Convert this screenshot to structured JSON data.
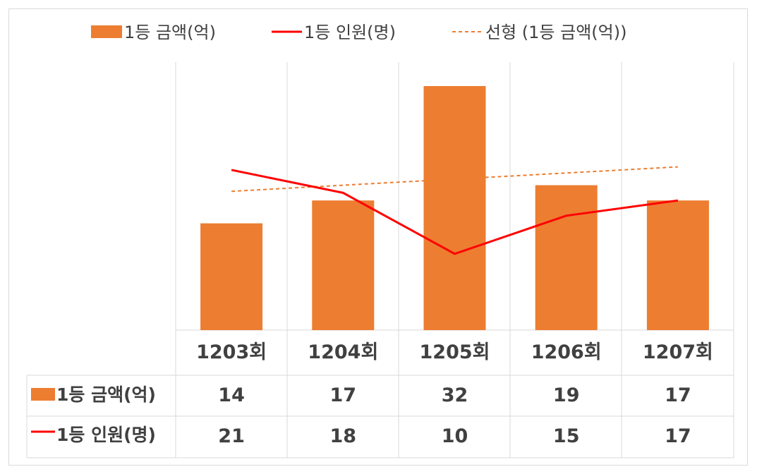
{
  "chart_data": {
    "type": "bar",
    "title": "",
    "categories": [
      "1203회",
      "1204회",
      "1205회",
      "1206회",
      "1207회"
    ],
    "series": [
      {
        "name": "1등 금액(억)",
        "kind": "bar",
        "color": "#ED7D31",
        "values": [
          14,
          17,
          32,
          19,
          17
        ]
      },
      {
        "name": "1등 인원(명)",
        "kind": "line",
        "color": "#FF0000",
        "values": [
          21,
          18,
          10,
          15,
          17
        ]
      }
    ],
    "trendline": {
      "name": "선형 (1등 금액(억))",
      "of_series": "1등 금액(억)",
      "color": "#ED7D31",
      "style": "dashed",
      "start": 18.2,
      "end": 21.4
    },
    "bar_axis_range": [
      0,
      32
    ],
    "line_axis_range": [
      0,
      32
    ],
    "data_table": true,
    "legend_position": "top",
    "grid": "vertical"
  }
}
